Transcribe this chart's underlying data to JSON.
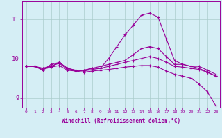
{
  "x": [
    0,
    1,
    2,
    3,
    4,
    5,
    6,
    7,
    8,
    9,
    10,
    11,
    12,
    13,
    14,
    15,
    16,
    17,
    18,
    19,
    20,
    21,
    22,
    23
  ],
  "line1": [
    9.8,
    9.8,
    9.7,
    9.85,
    9.9,
    9.75,
    9.7,
    9.7,
    9.75,
    9.75,
    10.0,
    10.3,
    10.6,
    10.85,
    11.1,
    11.15,
    11.05,
    10.5,
    9.95,
    9.85,
    9.8,
    9.75,
    9.65,
    9.55
  ],
  "line2": [
    9.8,
    9.8,
    9.75,
    9.8,
    9.9,
    9.75,
    9.7,
    9.7,
    9.75,
    9.8,
    9.85,
    9.9,
    9.95,
    10.1,
    10.25,
    10.3,
    10.25,
    10.05,
    9.85,
    9.85,
    9.8,
    9.8,
    9.7,
    9.6
  ],
  "line3": [
    9.8,
    9.8,
    9.75,
    9.8,
    9.88,
    9.72,
    9.7,
    9.68,
    9.72,
    9.75,
    9.8,
    9.85,
    9.9,
    9.95,
    10.0,
    10.05,
    10.0,
    9.9,
    9.8,
    9.78,
    9.75,
    9.72,
    9.65,
    9.56
  ],
  "line4": [
    9.8,
    9.8,
    9.72,
    9.78,
    9.82,
    9.7,
    9.68,
    9.65,
    9.68,
    9.7,
    9.72,
    9.75,
    9.78,
    9.8,
    9.82,
    9.82,
    9.78,
    9.68,
    9.6,
    9.55,
    9.5,
    9.35,
    9.15,
    8.8
  ],
  "ylim": [
    8.75,
    11.45
  ],
  "yticks": [
    9,
    10,
    11
  ],
  "xlim": [
    -0.5,
    23.5
  ],
  "line_color": "#990099",
  "bg_color": "#d5eef5",
  "grid_color": "#aacccc",
  "xlabel": "Windchill (Refroidissement éolien,°C)",
  "xtick_labels": [
    "0",
    "1",
    "2",
    "3",
    "4",
    "5",
    "6",
    "7",
    "8",
    "9",
    "10",
    "11",
    "12",
    "13",
    "14",
    "15",
    "16",
    "17",
    "18",
    "19",
    "20",
    "21",
    "22",
    "23"
  ]
}
